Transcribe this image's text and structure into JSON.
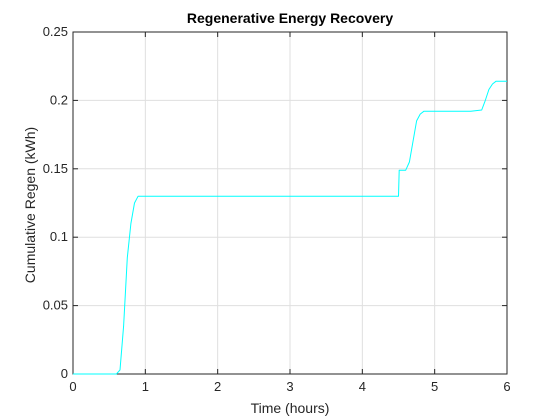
{
  "chart_data": {
    "type": "line",
    "title": "Regenerative Energy Recovery",
    "xlabel": "Time (hours)",
    "ylabel": "Cumulative Regen (kWh)",
    "xlim": [
      0,
      6
    ],
    "ylim": [
      0,
      0.25
    ],
    "xticks": [
      0,
      1,
      2,
      3,
      4,
      5,
      6
    ],
    "yticks": [
      0,
      0.05,
      0.1,
      0.15,
      0.2,
      0.25
    ],
    "xtick_labels": [
      "0",
      "1",
      "2",
      "3",
      "4",
      "5",
      "6"
    ],
    "ytick_labels": [
      "0",
      "0.05",
      "0.1",
      "0.15",
      "0.2",
      "0.25"
    ],
    "grid": true,
    "series": [
      {
        "color": "#00ffff",
        "x": [
          0,
          0.6,
          0.65,
          0.7,
          0.75,
          0.8,
          0.85,
          0.9,
          0.95,
          1.0,
          2.0,
          3.0,
          4.0,
          4.5,
          4.51,
          4.6,
          4.65,
          4.7,
          4.75,
          4.8,
          4.85,
          4.9,
          5.0,
          5.5,
          5.65,
          5.7,
          5.75,
          5.8,
          5.85,
          5.9,
          6.0
        ],
        "y": [
          0,
          0,
          0.003,
          0.035,
          0.085,
          0.11,
          0.125,
          0.13,
          0.13,
          0.13,
          0.13,
          0.13,
          0.13,
          0.13,
          0.149,
          0.149,
          0.155,
          0.17,
          0.185,
          0.19,
          0.192,
          0.192,
          0.192,
          0.192,
          0.193,
          0.2,
          0.208,
          0.212,
          0.214,
          0.214,
          0.214
        ]
      }
    ]
  }
}
